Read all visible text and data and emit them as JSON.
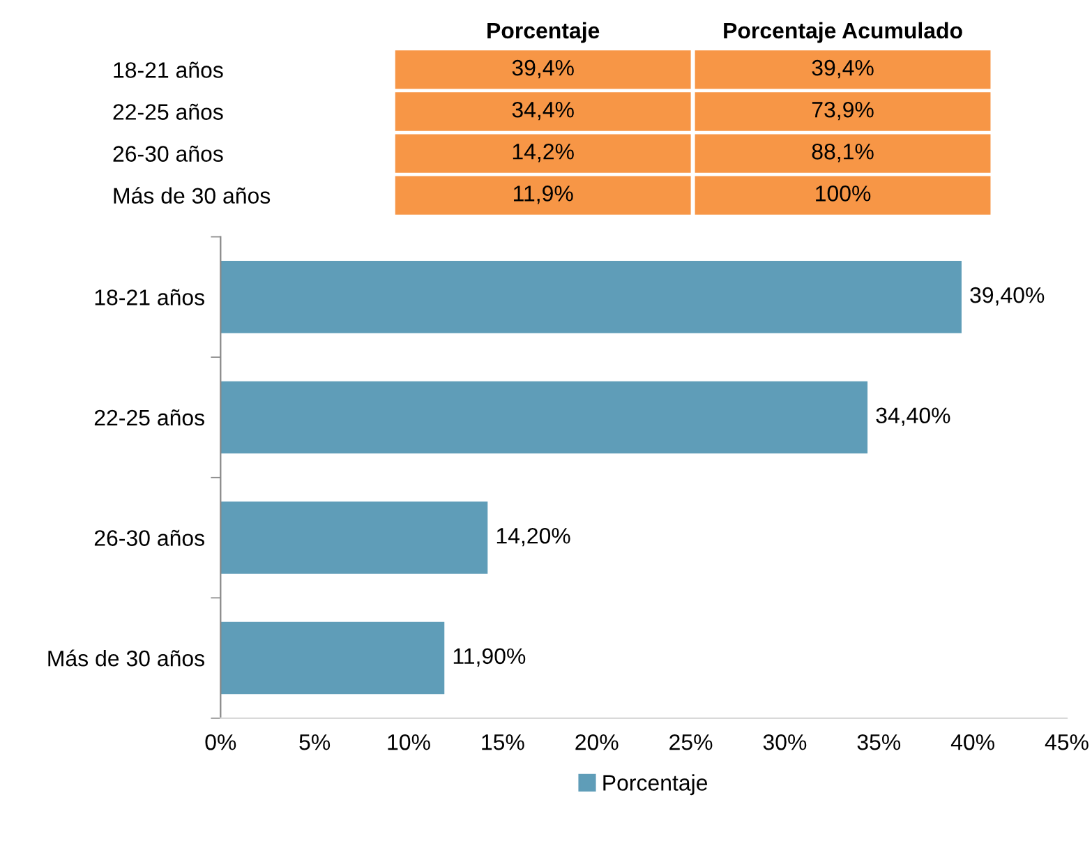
{
  "chart_data": [
    {
      "type": "other",
      "categories": [
        "Porcentaje",
        "Porcentaje Acumulado"
      ],
      "y_categories": [
        "18-21 años",
        "22-25 años",
        "26-30 años",
        "Más de 30 años"
      ],
      "cell_labels": [
        [
          "39,4%",
          "39,4%"
        ],
        [
          "34,4%",
          "73,9%"
        ],
        [
          "14,2%",
          "88,1%"
        ],
        [
          "11,9%",
          "100%"
        ]
      ],
      "color": "#f79646"
    },
    {
      "type": "bar",
      "orientation": "horizontal",
      "categories": [
        "18-21 años",
        "22-25 años",
        "26-30 años",
        "Más de 30 años"
      ],
      "series": [
        {
          "name": "Porcentaje",
          "color": "#5f9db8",
          "values": [
            39.4,
            34.4,
            14.2,
            11.9
          ],
          "value_labels": [
            "39,40%",
            "34,40%",
            "14,20%",
            "11,90%"
          ]
        }
      ],
      "xlim": [
        0,
        45
      ],
      "xticks": [
        {
          "value": 0,
          "label": "0%"
        },
        {
          "value": 5,
          "label": "5%"
        },
        {
          "value": 10,
          "label": "10%"
        },
        {
          "value": 15,
          "label": "15%"
        },
        {
          "value": 20,
          "label": "20%"
        },
        {
          "value": 25,
          "label": "25%"
        },
        {
          "value": 30,
          "label": "30%"
        },
        {
          "value": 35,
          "label": "35%"
        },
        {
          "value": 40,
          "label": "40%"
        },
        {
          "value": 45,
          "label": "45%"
        }
      ],
      "grid": false,
      "legend": "bottom"
    }
  ]
}
